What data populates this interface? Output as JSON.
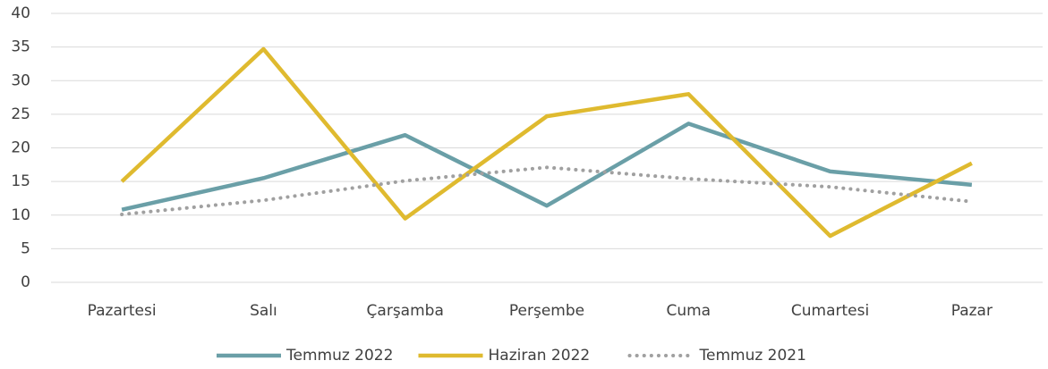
{
  "chart_data": {
    "type": "line",
    "categories": [
      "Pazartesi",
      "Salı",
      "Çarşamba",
      "Perşembe",
      "Cuma",
      "Cumartesi",
      "Pazar"
    ],
    "series": [
      {
        "name": "Temmuz 2022",
        "color": "#6a9fa7",
        "values": [
          10.8,
          15.5,
          21.9,
          11.4,
          23.6,
          16.5,
          14.5
        ]
      },
      {
        "name": "Haziran 2022",
        "color": "#dfba2f",
        "values": [
          15.0,
          34.7,
          9.5,
          24.7,
          28.0,
          6.9,
          17.7
        ]
      },
      {
        "name": "Temmuz 2021",
        "color": "#a0a0a0",
        "dotted": true,
        "values": [
          10.1,
          12.2,
          15.1,
          17.1,
          15.4,
          14.2,
          12.0
        ]
      }
    ],
    "ylim": [
      0,
      40
    ],
    "yticks": [
      0,
      5,
      10,
      15,
      20,
      25,
      30,
      35,
      40
    ],
    "grid": true,
    "legend": "bottom"
  }
}
